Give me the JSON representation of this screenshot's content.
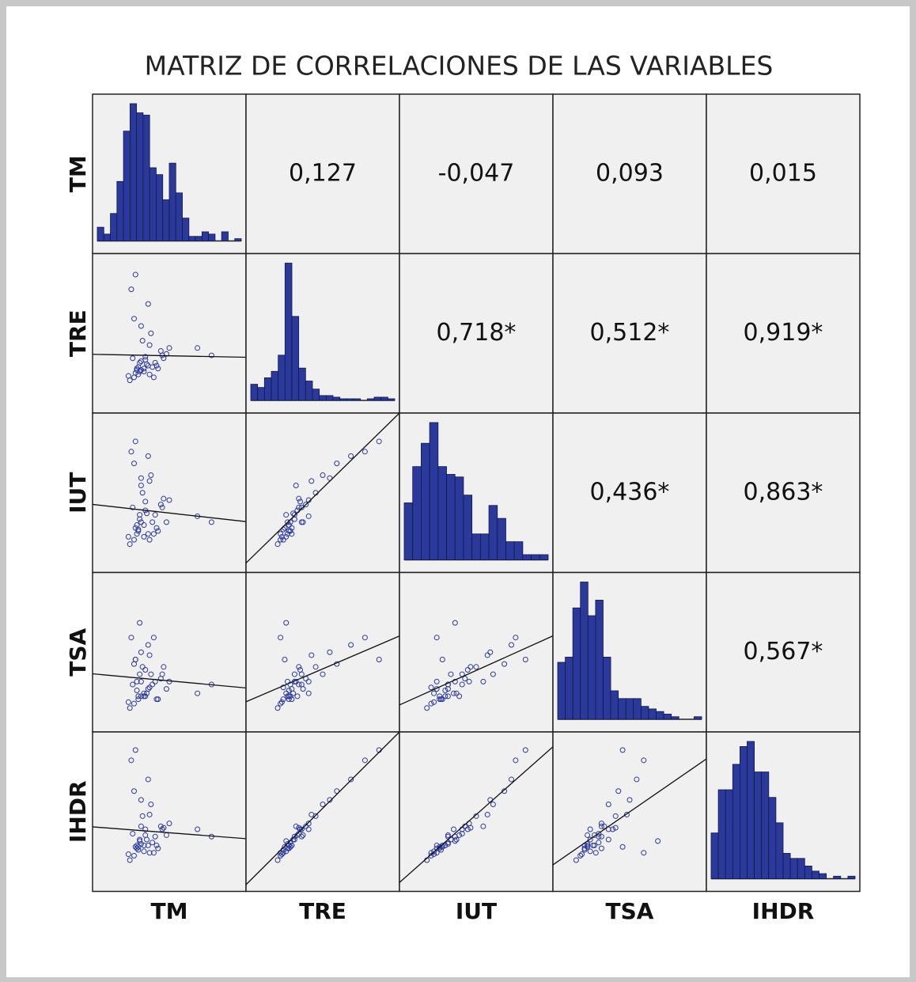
{
  "chart_data": {
    "type": "scatter_matrix",
    "title": "MATRIZ DE CORRELACIONES DE LAS VARIABLES",
    "variables": [
      "TM",
      "TRE",
      "IUT",
      "TSA",
      "IHDR"
    ],
    "correlations": [
      [
        null,
        0.127,
        -0.047,
        0.093,
        0.015
      ],
      [
        null,
        null,
        0.718,
        0.512,
        0.919
      ],
      [
        null,
        null,
        null,
        0.436,
        0.863
      ],
      [
        null,
        null,
        null,
        null,
        0.567
      ],
      [
        null,
        null,
        null,
        null,
        null
      ]
    ],
    "value_labels": [
      [
        null,
        "0,127",
        "-0,047",
        "0,093",
        "0,015"
      ],
      [
        null,
        null,
        "0,718*",
        "0,512*",
        "0,919*"
      ],
      [
        null,
        null,
        null,
        "0,436*",
        "0,863*"
      ],
      [
        null,
        null,
        null,
        null,
        "0,567*"
      ],
      [
        null,
        null,
        null,
        null,
        null
      ]
    ],
    "histograms": [
      [
        6,
        3,
        12,
        26,
        48,
        60,
        56,
        55,
        32,
        29,
        18,
        34,
        21,
        10,
        2,
        2,
        4,
        3,
        0,
        4,
        0,
        1
      ],
      [
        10,
        8,
        14,
        18,
        28,
        85,
        52,
        20,
        12,
        7,
        3,
        3,
        2,
        1,
        1,
        1,
        0,
        1,
        2,
        2,
        1
      ],
      [
        22,
        36,
        45,
        53,
        36,
        33,
        32,
        25,
        10,
        10,
        21,
        16,
        7,
        7,
        2,
        2,
        2
      ],
      [
        22,
        24,
        43,
        53,
        40,
        46,
        24,
        11,
        8,
        8,
        8,
        5,
        4,
        3,
        2,
        1,
        0,
        0,
        1
      ],
      [
        18,
        35,
        35,
        45,
        52,
        54,
        42,
        42,
        32,
        22,
        10,
        8,
        8,
        5,
        3,
        2,
        0,
        1,
        0,
        1
      ]
    ],
    "lim": [
      0,
      100
    ],
    "color": "#2b3a9a",
    "observations": [
      [
        30,
        25,
        30,
        20,
        28
      ],
      [
        35,
        28,
        22,
        25,
        27
      ],
      [
        25,
        20,
        18,
        15,
        20
      ],
      [
        40,
        30,
        35,
        30,
        33
      ],
      [
        28,
        22,
        25,
        18,
        24
      ],
      [
        45,
        35,
        40,
        35,
        38
      ],
      [
        32,
        24,
        20,
        22,
        23
      ],
      [
        22,
        18,
        15,
        12,
        17
      ],
      [
        38,
        27,
        30,
        28,
        29
      ],
      [
        50,
        40,
        45,
        30,
        42
      ],
      [
        27,
        26,
        28,
        24,
        27
      ],
      [
        33,
        32,
        38,
        20,
        34
      ],
      [
        36,
        22,
        18,
        26,
        22
      ],
      [
        29,
        30,
        32,
        35,
        31
      ],
      [
        42,
        26,
        24,
        18,
        25
      ],
      [
        24,
        33,
        40,
        28,
        35
      ],
      [
        31,
        45,
        50,
        40,
        47
      ],
      [
        37,
        50,
        62,
        35,
        55
      ],
      [
        26,
        23,
        26,
        45,
        26
      ],
      [
        34,
        29,
        36,
        22,
        31
      ],
      [
        30,
        55,
        60,
        50,
        58
      ],
      [
        44,
        38,
        42,
        32,
        40
      ],
      [
        21,
        21,
        20,
        16,
        21
      ],
      [
        39,
        20,
        22,
        60,
        22
      ],
      [
        48,
        36,
        30,
        25,
        34
      ],
      [
        25,
        60,
        70,
        42,
        64
      ],
      [
        33,
        34,
        44,
        38,
        38
      ],
      [
        28,
        27,
        24,
        20,
        26
      ],
      [
        70,
        40,
        34,
        22,
        38
      ],
      [
        80,
        35,
        30,
        28,
        33
      ],
      [
        35,
        70,
        75,
        55,
        72
      ],
      [
        30,
        31,
        55,
        30,
        40
      ],
      [
        27,
        25,
        22,
        30,
        25
      ],
      [
        41,
        28,
        26,
        18,
        27
      ],
      [
        23,
        80,
        78,
        60,
        85
      ],
      [
        36,
        42,
        58,
        48,
        48
      ],
      [
        29,
        24,
        35,
        70,
        30
      ],
      [
        32,
        26,
        28,
        20,
        27
      ],
      [
        46,
        33,
        46,
        40,
        39
      ],
      [
        26,
        90,
        85,
        45,
        92
      ]
    ]
  }
}
